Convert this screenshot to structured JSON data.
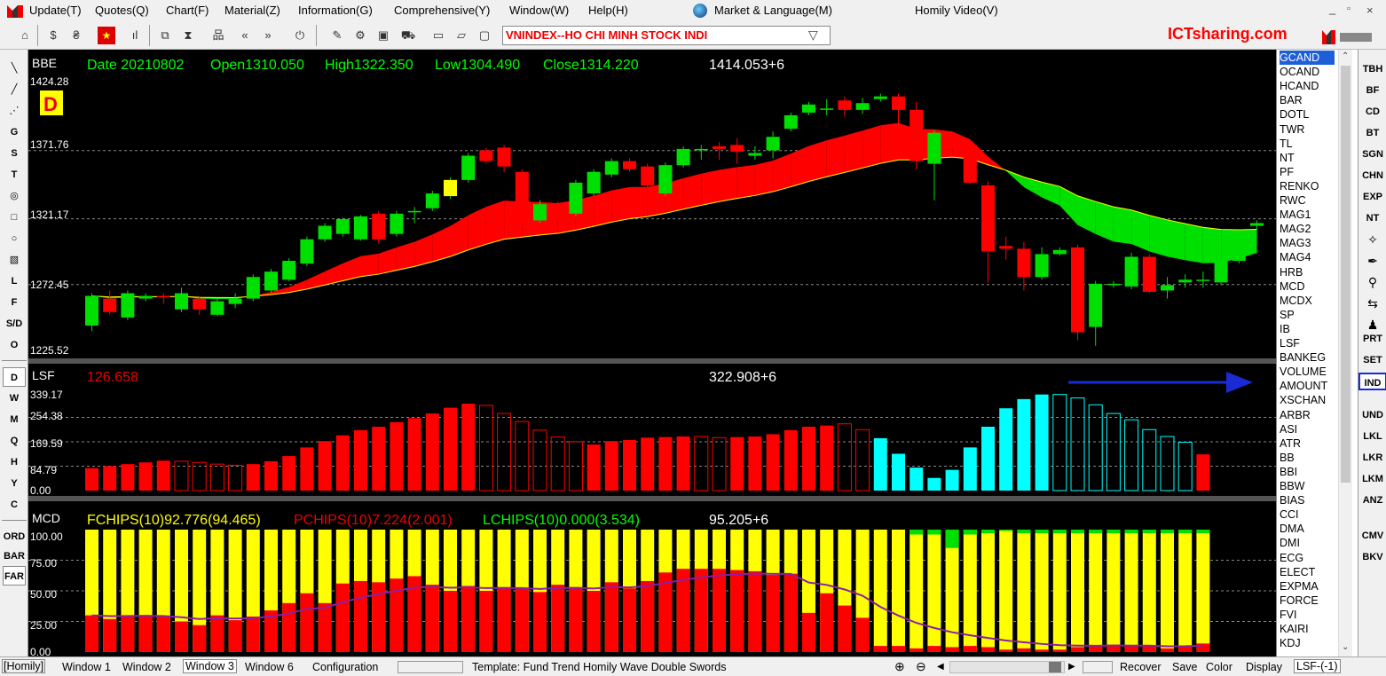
{
  "menu": {
    "items": [
      "Update(T)",
      "Quotes(Q)",
      "Chart(F)",
      "Material(Z)",
      "Information(G)",
      "Comprehensive(Y)",
      "Window(W)",
      "Help(H)"
    ],
    "market_language": "Market & Language(M)",
    "homily_video": "Homily Video(V)"
  },
  "toolbar": {
    "symbol": "VNINDEX--HO CHI MINH STOCK INDI",
    "brand": "ICTsharing.com"
  },
  "left_tools": {
    "draw": [
      "G",
      "S",
      "T"
    ],
    "extra": [
      "L",
      "F",
      "S/D",
      "O"
    ],
    "periods": [
      "D",
      "W",
      "M",
      "Q",
      "H",
      "Y",
      "C"
    ],
    "bottom": [
      "ORD",
      "BAR",
      "FAR"
    ]
  },
  "price_panel": {
    "indicator": "BBE",
    "info": {
      "date": "Date 20210802",
      "open": "Open1310.050",
      "high": "High1322.350",
      "low": "Low1304.490",
      "close": "Close1314.220"
    },
    "peak_label": "1414.053+6",
    "period_badge": "D",
    "y_labels": [
      "1424.28",
      "1371.76",
      "1321.17",
      "1272.45",
      "1225.52"
    ]
  },
  "volume_panel": {
    "indicator": "LSF",
    "current": "126.658",
    "peak_label": "322.908+6",
    "y_labels": [
      "339.17",
      "254.38",
      "169.59",
      "84.79",
      "0.00"
    ]
  },
  "chips_panel": {
    "indicator": "MCD",
    "fchips": "FCHIPS(10)92.776(94.465)",
    "pchips": "PCHIPS(10)7.224(2.001)",
    "lchips": "LCHIPS(10)0.000(3.534)",
    "peak_label": "95.205+6",
    "y_labels": [
      "100.00",
      "75.00",
      "50.00",
      "25.00",
      "0.00"
    ]
  },
  "indicator_list": {
    "selected": "GCAND",
    "items": [
      "GCAND",
      "OCAND",
      "HCAND",
      "BAR",
      "DOTL",
      "TWR",
      "TL",
      "NT",
      "PF",
      "RENKO",
      "RWC",
      "MAG1",
      "MAG2",
      "MAG3",
      "MAG4",
      "HRB",
      "MCD",
      "MCDX",
      "SP",
      "IB",
      "LSF",
      "BANKEG",
      "VOLUME",
      "AMOUNT",
      "XSCHAN",
      "ARBR",
      "ASI",
      "ATR",
      "BB",
      "BBI",
      "BBW",
      "BIAS",
      "CCI",
      "DMA",
      "DMI",
      "ECG",
      "ELECT",
      "EXPMA",
      "FORCE",
      "FVI",
      "KAIRI",
      "KDJ"
    ]
  },
  "right_buttons": {
    "group1": [
      "TBH",
      "BF",
      "CD",
      "BT",
      "SGN",
      "CHN",
      "EXP",
      "NT"
    ],
    "group2": [
      "PRT",
      "SET",
      "IND"
    ],
    "group3": [
      "UND",
      "LKL",
      "LKR",
      "LKM",
      "ANZ"
    ],
    "group4": [
      "CMV",
      "BKV"
    ],
    "highlighted": "IND"
  },
  "statusbar": {
    "homily": "[Homily]",
    "windows": [
      "Window 1",
      "Window 2",
      "Window 3",
      "Window 6"
    ],
    "configuration": "Configuration",
    "template": "Template: Fund Trend  Homily Wave  Double Swords",
    "actions": [
      "Recover",
      "Save",
      "Color",
      "Display"
    ],
    "lsf": "LSF-(-1)"
  },
  "colors": {
    "up": "#00e000",
    "down": "#ff0000",
    "chart_bg": "#000000",
    "cyan": "#00ffff",
    "yellow": "#ffff00",
    "brand_red": "#ff0000",
    "highlight_blue": "#1a2bd6"
  },
  "chart_data": [
    {
      "type": "candlestick",
      "title": "BBE",
      "ylim": [
        1225.52,
        1424.28
      ],
      "y_ticks": [
        1424.28,
        1371.76,
        1321.17,
        1272.45,
        1225.52
      ],
      "candles": [
        [
          1242,
          1264,
          1238,
          1266
        ],
        [
          1262,
          1252,
          1250,
          1268
        ],
        [
          1248,
          1266,
          1246,
          1268
        ],
        [
          1262,
          1264,
          1260,
          1266
        ],
        [
          1264,
          1263,
          1258,
          1266
        ],
        [
          1254,
          1266,
          1252,
          1270
        ],
        [
          1262,
          1254,
          1250,
          1264
        ],
        [
          1250,
          1260,
          1249,
          1262
        ],
        [
          1258,
          1262,
          1255,
          1266
        ],
        [
          1262,
          1278,
          1260,
          1280
        ],
        [
          1268,
          1282,
          1266,
          1284
        ],
        [
          1276,
          1290,
          1275,
          1292
        ],
        [
          1288,
          1306,
          1286,
          1308
        ],
        [
          1306,
          1316,
          1304,
          1318
        ],
        [
          1310,
          1321,
          1308,
          1322
        ],
        [
          1306,
          1323,
          1305,
          1324
        ],
        [
          1325,
          1306,
          1303,
          1327
        ],
        [
          1310,
          1325,
          1308,
          1327
        ],
        [
          1326,
          1327,
          1318,
          1330
        ],
        [
          1329,
          1340,
          1327,
          1342
        ],
        [
          1338,
          1350,
          1336,
          1352
        ],
        [
          1350,
          1368,
          1348,
          1370
        ],
        [
          1372,
          1364,
          1362,
          1374
        ],
        [
          1374,
          1360,
          1356,
          1376
        ],
        [
          1356,
          1330,
          1318,
          1358
        ],
        [
          1320,
          1332,
          1318,
          1335
        ],
        [
          1330,
          1328,
          1320,
          1334
        ],
        [
          1325,
          1348,
          1323,
          1350
        ],
        [
          1340,
          1356,
          1338,
          1358
        ],
        [
          1354,
          1364,
          1352,
          1366
        ],
        [
          1364,
          1358,
          1356,
          1366
        ],
        [
          1360,
          1346,
          1344,
          1362
        ],
        [
          1340,
          1361,
          1338,
          1363
        ],
        [
          1361,
          1373,
          1359,
          1375
        ],
        [
          1372,
          1373,
          1365,
          1376
        ],
        [
          1375,
          1373,
          1365,
          1378
        ],
        [
          1376,
          1371,
          1362,
          1381
        ],
        [
          1368,
          1370,
          1365,
          1375
        ],
        [
          1372,
          1382,
          1366,
          1386
        ],
        [
          1388,
          1398,
          1386,
          1400
        ],
        [
          1400,
          1406,
          1398,
          1408
        ],
        [
          1402,
          1403,
          1398,
          1410
        ],
        [
          1409,
          1402,
          1397,
          1412
        ],
        [
          1402,
          1407,
          1399,
          1411
        ],
        [
          1410,
          1412,
          1408,
          1414
        ],
        [
          1412,
          1402,
          1390,
          1414
        ],
        [
          1402,
          1364,
          1358,
          1408
        ],
        [
          1362,
          1385,
          1335,
          1387
        ],
        [
          1380,
          1378,
          1374,
          1382
        ],
        [
          1376,
          1348,
          1347,
          1378
        ],
        [
          1346,
          1297,
          1274,
          1349
        ],
        [
          1301,
          1299,
          1291,
          1308
        ],
        [
          1299,
          1278,
          1268,
          1304
        ],
        [
          1278,
          1295,
          1276,
          1300
        ],
        [
          1295,
          1298,
          1294,
          1300
        ],
        [
          1300,
          1237,
          1231,
          1302
        ],
        [
          1241,
          1273,
          1227,
          1275
        ],
        [
          1273,
          1273,
          1270,
          1275
        ],
        [
          1271,
          1293,
          1269,
          1296
        ],
        [
          1293,
          1267,
          1266,
          1295
        ],
        [
          1268,
          1272,
          1262,
          1278
        ],
        [
          1274,
          1276,
          1270,
          1280
        ],
        [
          1276,
          1276,
          1270,
          1282
        ],
        [
          1274,
          1290,
          1272,
          1292
        ],
        [
          1290,
          1310,
          1288,
          1312
        ],
        [
          1316,
          1318,
          1313,
          1320
        ]
      ]
    },
    {
      "type": "bar",
      "title": "LSF",
      "ylim": [
        0,
        339.17
      ],
      "y_ticks": [
        339.17,
        254.38,
        169.59,
        84.79,
        0.0
      ],
      "values": [
        [
          78,
          "r",
          1
        ],
        [
          85,
          "r",
          1
        ],
        [
          92,
          "r",
          1
        ],
        [
          98,
          "r",
          1
        ],
        [
          104,
          "r",
          1
        ],
        [
          102,
          "r",
          0
        ],
        [
          98,
          "r",
          0
        ],
        [
          92,
          "r",
          0
        ],
        [
          88,
          "r",
          0
        ],
        [
          92,
          "r",
          1
        ],
        [
          102,
          "r",
          1
        ],
        [
          120,
          "r",
          1
        ],
        [
          150,
          "r",
          1
        ],
        [
          172,
          "r",
          1
        ],
        [
          192,
          "r",
          1
        ],
        [
          210,
          "r",
          1
        ],
        [
          222,
          "r",
          1
        ],
        [
          238,
          "r",
          1
        ],
        [
          252,
          "r",
          1
        ],
        [
          268,
          "r",
          1
        ],
        [
          288,
          "r",
          1
        ],
        [
          302,
          "r",
          1
        ],
        [
          296,
          "r",
          0
        ],
        [
          268,
          "r",
          0
        ],
        [
          240,
          "r",
          0
        ],
        [
          210,
          "r",
          0
        ],
        [
          186,
          "r",
          0
        ],
        [
          170,
          "r",
          0
        ],
        [
          160,
          "r",
          1
        ],
        [
          172,
          "r",
          1
        ],
        [
          176,
          "r",
          1
        ],
        [
          184,
          "r",
          1
        ],
        [
          186,
          "r",
          1
        ],
        [
          188,
          "r",
          1
        ],
        [
          188,
          "r",
          0
        ],
        [
          184,
          "r",
          0
        ],
        [
          186,
          "r",
          1
        ],
        [
          188,
          "r",
          1
        ],
        [
          196,
          "r",
          1
        ],
        [
          210,
          "r",
          1
        ],
        [
          222,
          "r",
          1
        ],
        [
          226,
          "r",
          1
        ],
        [
          232,
          "r",
          0
        ],
        [
          212,
          "r",
          0
        ],
        [
          182,
          "c",
          1
        ],
        [
          128,
          "c",
          1
        ],
        [
          80,
          "c",
          1
        ],
        [
          44,
          "c",
          1
        ],
        [
          72,
          "c",
          1
        ],
        [
          150,
          "c",
          1
        ],
        [
          222,
          "c",
          1
        ],
        [
          286,
          "c",
          1
        ],
        [
          318,
          "c",
          1
        ],
        [
          334,
          "c",
          1
        ],
        [
          334,
          "c",
          0
        ],
        [
          322,
          "c",
          0
        ],
        [
          298,
          "c",
          0
        ],
        [
          268,
          "c",
          0
        ],
        [
          246,
          "c",
          0
        ],
        [
          212,
          "c",
          0
        ],
        [
          188,
          "c",
          0
        ],
        [
          168,
          "c",
          0
        ],
        [
          126,
          "r",
          1
        ]
      ]
    },
    {
      "type": "stacked_bar",
      "title": "MCD",
      "ylim": [
        0,
        100
      ],
      "y_ticks": [
        100.0,
        75.0,
        50.0,
        25.0,
        0.0
      ],
      "series_names": [
        "FCHIPS(10)",
        "PCHIPS(10)",
        "LCHIPS(10)"
      ],
      "values": [
        [
          30,
          0
        ],
        [
          27,
          0
        ],
        [
          30,
          0
        ],
        [
          30,
          0
        ],
        [
          29,
          0
        ],
        [
          25,
          0
        ],
        [
          22,
          0
        ],
        [
          30,
          0
        ],
        [
          26,
          0
        ],
        [
          29,
          0
        ],
        [
          34,
          0
        ],
        [
          40,
          0
        ],
        [
          48,
          0
        ],
        [
          40,
          0
        ],
        [
          56,
          0
        ],
        [
          58,
          0
        ],
        [
          57,
          0
        ],
        [
          60,
          0
        ],
        [
          62,
          0
        ],
        [
          55,
          0
        ],
        [
          50,
          0
        ],
        [
          54,
          0
        ],
        [
          50,
          0
        ],
        [
          53,
          0
        ],
        [
          52,
          0
        ],
        [
          49,
          0
        ],
        [
          55,
          0
        ],
        [
          53,
          0
        ],
        [
          50,
          0
        ],
        [
          57,
          0
        ],
        [
          52,
          0
        ],
        [
          58,
          0
        ],
        [
          65,
          0
        ],
        [
          68,
          0
        ],
        [
          68,
          0
        ],
        [
          68,
          0
        ],
        [
          67,
          0
        ],
        [
          66,
          0
        ],
        [
          63,
          0
        ],
        [
          64,
          0
        ],
        [
          32,
          0
        ],
        [
          48,
          0
        ],
        [
          38,
          0
        ],
        [
          28,
          0
        ],
        [
          5,
          0
        ],
        [
          5,
          0
        ],
        [
          3,
          4
        ],
        [
          5,
          4
        ],
        [
          4,
          15
        ],
        [
          5,
          4
        ],
        [
          4,
          3
        ],
        [
          2,
          1
        ],
        [
          3,
          3
        ],
        [
          2,
          3
        ],
        [
          2,
          3
        ],
        [
          4,
          3
        ],
        [
          5,
          3
        ],
        [
          6,
          3
        ],
        [
          5,
          3
        ],
        [
          5,
          3
        ],
        [
          3,
          3
        ],
        [
          5,
          3
        ],
        [
          7,
          3
        ]
      ]
    }
  ]
}
